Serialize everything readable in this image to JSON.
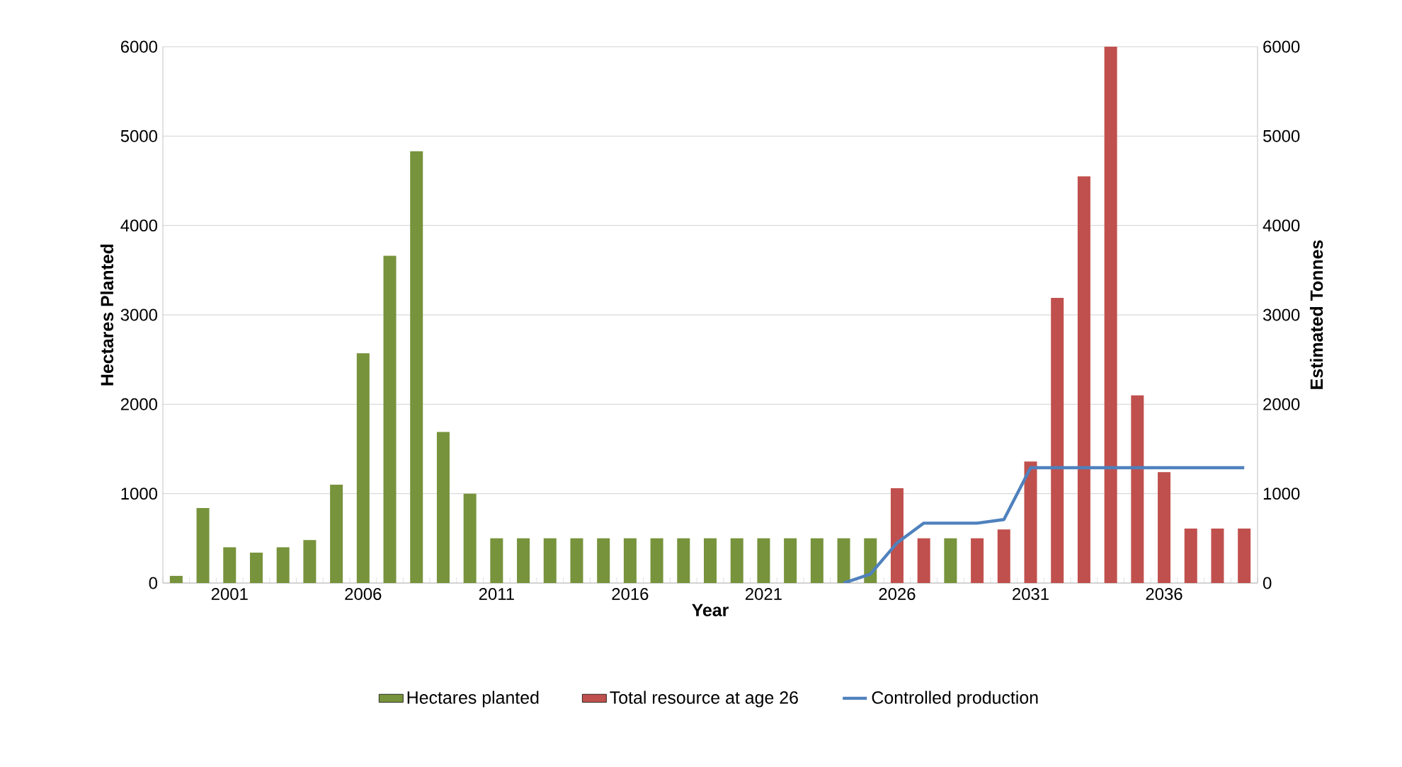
{
  "chart_data": {
    "type": "bar",
    "xlabel": "Year",
    "ylabel": "Hectares Planted",
    "y2label": "Estimated Tonnes",
    "categories": [
      null,
      null,
      "2001",
      null,
      null,
      null,
      null,
      "2006",
      null,
      null,
      null,
      null,
      "2011",
      null,
      null,
      null,
      null,
      "2016",
      null,
      null,
      null,
      null,
      "2021",
      null,
      null,
      null,
      null,
      "2026",
      null,
      null,
      null,
      null,
      "2031",
      null,
      null,
      null,
      null,
      "2036",
      null,
      null,
      null
    ],
    "series": [
      {
        "name": "Hectares planted",
        "color": "#77933c",
        "values": [
          80,
          840,
          400,
          340,
          400,
          480,
          1100,
          2570,
          3660,
          4830,
          1690,
          1000,
          500,
          500,
          500,
          500,
          500,
          500,
          500,
          500,
          500,
          500,
          500,
          500,
          500,
          500,
          500,
          null,
          null,
          500,
          null,
          null,
          null,
          null,
          null,
          null,
          null,
          null,
          null,
          null,
          null
        ]
      },
      {
        "name": "Total resource at age 26",
        "color": "#c0504d",
        "values": [
          null,
          null,
          null,
          null,
          null,
          null,
          null,
          null,
          null,
          null,
          null,
          null,
          null,
          null,
          null,
          null,
          null,
          null,
          null,
          null,
          null,
          null,
          null,
          null,
          null,
          null,
          null,
          1060,
          500,
          null,
          500,
          600,
          1360,
          3190,
          4550,
          6000,
          2100,
          1240,
          610,
          610,
          610
        ]
      },
      {
        "name": "Controlled production",
        "type": "line",
        "axis": "y2",
        "color": "#4f81bd",
        "values": [
          null,
          null,
          null,
          null,
          null,
          null,
          null,
          null,
          null,
          null,
          null,
          null,
          null,
          null,
          null,
          null,
          null,
          null,
          null,
          null,
          null,
          null,
          null,
          null,
          null,
          0,
          100,
          450,
          670,
          670,
          670,
          710,
          1290,
          1290,
          1290,
          1290,
          1290,
          1290,
          1290,
          1290,
          1290
        ]
      }
    ],
    "ylim": [
      0,
      6000
    ],
    "yticks": [
      0,
      1000,
      2000,
      3000,
      4000,
      5000,
      6000
    ],
    "y2lim": [
      0,
      6000
    ],
    "y2ticks": [
      0,
      1000,
      2000,
      3000,
      4000,
      5000,
      6000
    ],
    "grid": "y",
    "legend": "bottom",
    "line_style": "solid"
  }
}
